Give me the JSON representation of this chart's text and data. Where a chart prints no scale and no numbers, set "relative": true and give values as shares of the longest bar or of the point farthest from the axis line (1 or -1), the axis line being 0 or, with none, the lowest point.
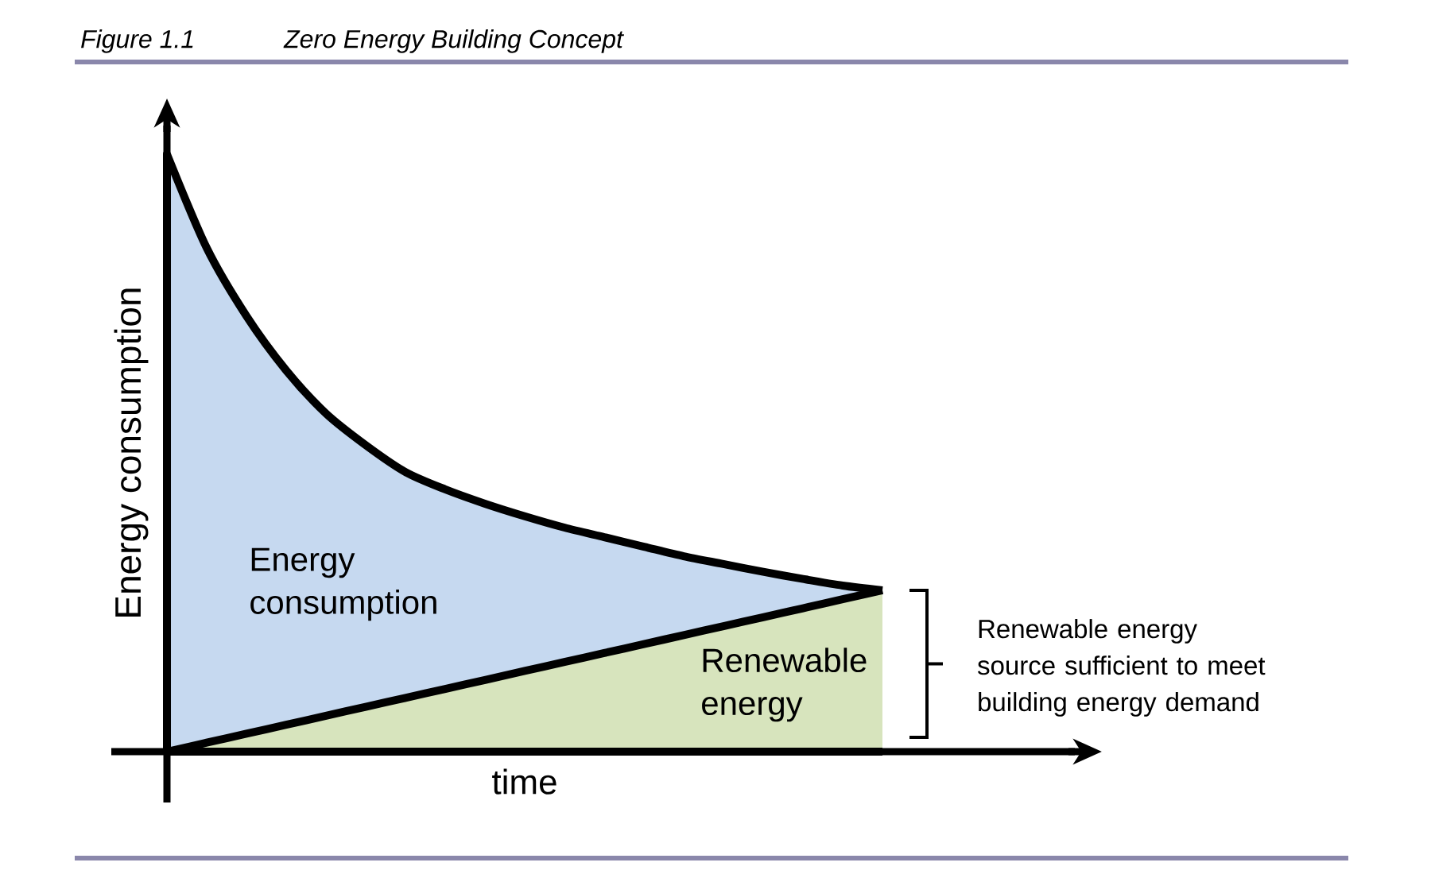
{
  "chart_data": {
    "type": "area",
    "title": "Zero Energy Building Concept",
    "xlabel": "time",
    "ylabel": "Energy consumption",
    "relative": true,
    "categories": [
      null,
      null,
      null,
      null,
      null,
      null,
      null,
      null,
      null,
      null,
      null,
      null,
      null,
      null,
      null,
      null,
      null,
      null,
      null
    ],
    "series": [
      {
        "name": "Energy consumption",
        "color": "#c6d9f0",
        "values": [
          1.0,
          0.843,
          0.729,
          0.638,
          0.566,
          0.513,
          0.468,
          0.439,
          0.415,
          0.394,
          0.375,
          0.359,
          0.343,
          0.327,
          0.314,
          0.301,
          0.289,
          0.278,
          0.27
        ]
      },
      {
        "name": "Renewable energy",
        "color": "#d7e4bd",
        "values": [
          0,
          0.015,
          0.03,
          0.045,
          0.06,
          0.075,
          0.09,
          0.105,
          0.12,
          0.135,
          0.15,
          0.165,
          0.18,
          0.195,
          0.21,
          0.225,
          0.24,
          0.255,
          0.27
        ]
      }
    ],
    "annotations": [
      "Figure 1.1",
      "Renewable energy source sufficient to meet building energy demand"
    ]
  }
}
